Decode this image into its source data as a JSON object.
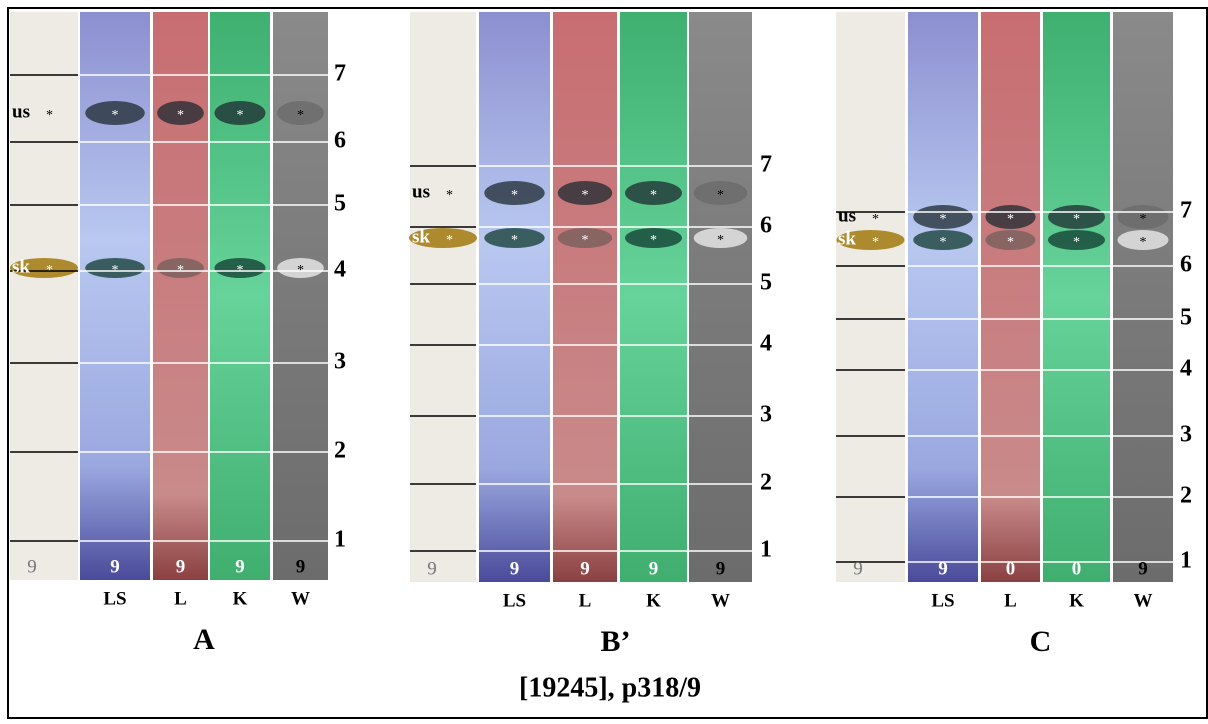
{
  "figure": {
    "caption": "[19245], p318/9",
    "spot_marker": "*",
    "panels": [
      {
        "label": "A",
        "lanes": [
          "LS",
          "L",
          "K",
          "W"
        ],
        "sample_labels": [
          "9",
          "9",
          "9",
          "9"
        ],
        "paper_sample": "9",
        "scale": [
          "1",
          "2",
          "3",
          "4",
          "5",
          "6",
          "7"
        ],
        "spots": [
          "us",
          "sk"
        ]
      },
      {
        "label": "B’",
        "lanes": [
          "LS",
          "L",
          "K",
          "W"
        ],
        "sample_labels": [
          "9",
          "9",
          "9",
          "9"
        ],
        "paper_sample": "9",
        "scale": [
          "1",
          "2",
          "3",
          "4",
          "5",
          "6",
          "7"
        ],
        "spots": [
          "us",
          "sk"
        ]
      },
      {
        "label": "C",
        "lanes": [
          "LS",
          "L",
          "K",
          "W"
        ],
        "sample_labels": [
          "9",
          "0",
          "0",
          "9"
        ],
        "paper_sample": "9",
        "scale": [
          "1",
          "2",
          "3",
          "4",
          "5",
          "6",
          "7"
        ],
        "spots": [
          "us",
          "sk"
        ]
      }
    ]
  }
}
